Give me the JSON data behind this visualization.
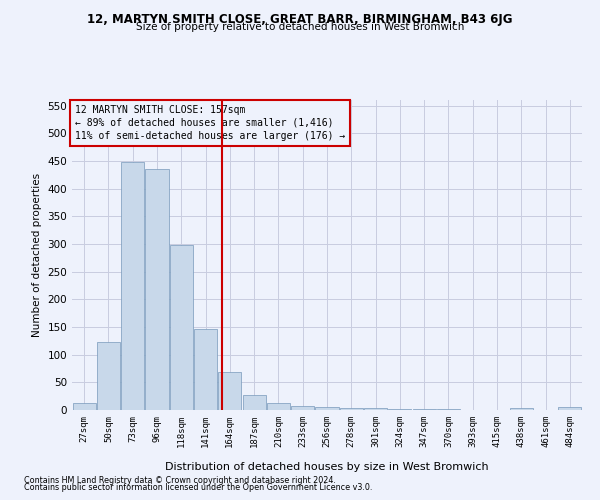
{
  "title1": "12, MARTYN SMITH CLOSE, GREAT BARR, BIRMINGHAM, B43 6JG",
  "title2": "Size of property relative to detached houses in West Bromwich",
  "xlabel": "Distribution of detached houses by size in West Bromwich",
  "ylabel": "Number of detached properties",
  "footer1": "Contains HM Land Registry data © Crown copyright and database right 2024.",
  "footer2": "Contains public sector information licensed under the Open Government Licence v3.0.",
  "annotation_line1": "12 MARTYN SMITH CLOSE: 157sqm",
  "annotation_line2": "← 89% of detached houses are smaller (1,416)",
  "annotation_line3": "11% of semi-detached houses are larger (176) →",
  "bar_color": "#c8d8ea",
  "bar_edge_color": "#7799bb",
  "grid_color": "#c8cce0",
  "vline_color": "#cc0000",
  "annotation_box_color": "#cc0000",
  "background_color": "#eef2fc",
  "bins": [
    "27sqm",
    "50sqm",
    "73sqm",
    "96sqm",
    "118sqm",
    "141sqm",
    "164sqm",
    "187sqm",
    "210sqm",
    "233sqm",
    "256sqm",
    "278sqm",
    "301sqm",
    "324sqm",
    "347sqm",
    "370sqm",
    "393sqm",
    "415sqm",
    "438sqm",
    "461sqm",
    "484sqm"
  ],
  "values": [
    12,
    122,
    448,
    435,
    298,
    146,
    68,
    27,
    13,
    8,
    6,
    4,
    3,
    1,
    1,
    1,
    0,
    0,
    4,
    0,
    6
  ],
  "ylim": [
    0,
    560
  ],
  "yticks": [
    0,
    50,
    100,
    150,
    200,
    250,
    300,
    350,
    400,
    450,
    500,
    550
  ]
}
